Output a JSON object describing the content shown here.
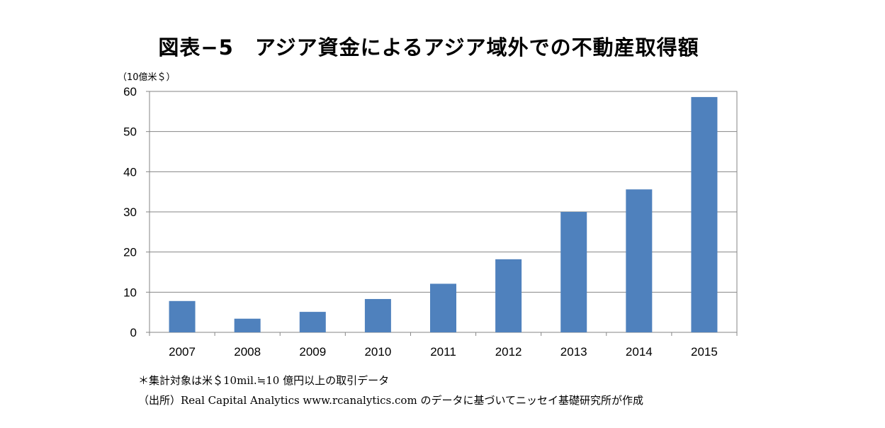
{
  "chart_data": {
    "type": "bar",
    "title": "図表−5　アジア資金によるアジア域外での不動産取得額",
    "ylabel": "（10億米＄）",
    "categories": [
      "2007",
      "2008",
      "2009",
      "2010",
      "2011",
      "2012",
      "2013",
      "2014",
      "2015"
    ],
    "values": [
      7.8,
      3.4,
      5.1,
      8.3,
      12.1,
      18.2,
      30.0,
      35.6,
      58.6
    ],
    "ylim": [
      0,
      60
    ],
    "yticks": [
      0,
      10,
      20,
      30,
      40,
      50,
      60
    ],
    "grid": true,
    "bar_color": "#4f81bd"
  },
  "notes": {
    "line1": "＊集計対象は米＄10mil.≒10 億円以上の取引データ",
    "line2": "（出所）Real Capital Analytics www.rcanalytics.com  のデータに基づいてニッセイ基礎研究所が作成"
  }
}
